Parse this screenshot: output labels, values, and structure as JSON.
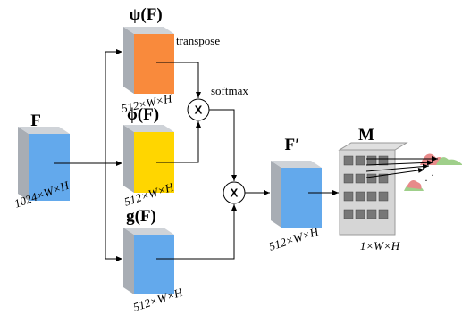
{
  "nodes": [
    {
      "label": "F",
      "dims": "1024×W×H"
    },
    {
      "label": "ψ(F)",
      "dims": "512×W×H"
    },
    {
      "label": "ϕ(F)",
      "dims": "512×W×H"
    },
    {
      "label": "g(F)",
      "dims": "512×W×H"
    },
    {
      "label": "F′",
      "dims": "512×W×H"
    },
    {
      "label": "M",
      "dims": "1×W×H"
    }
  ],
  "operations": [
    {
      "label": "X"
    },
    {
      "label": "X"
    }
  ],
  "edge_labels": [
    "transpose",
    "softmax"
  ]
}
